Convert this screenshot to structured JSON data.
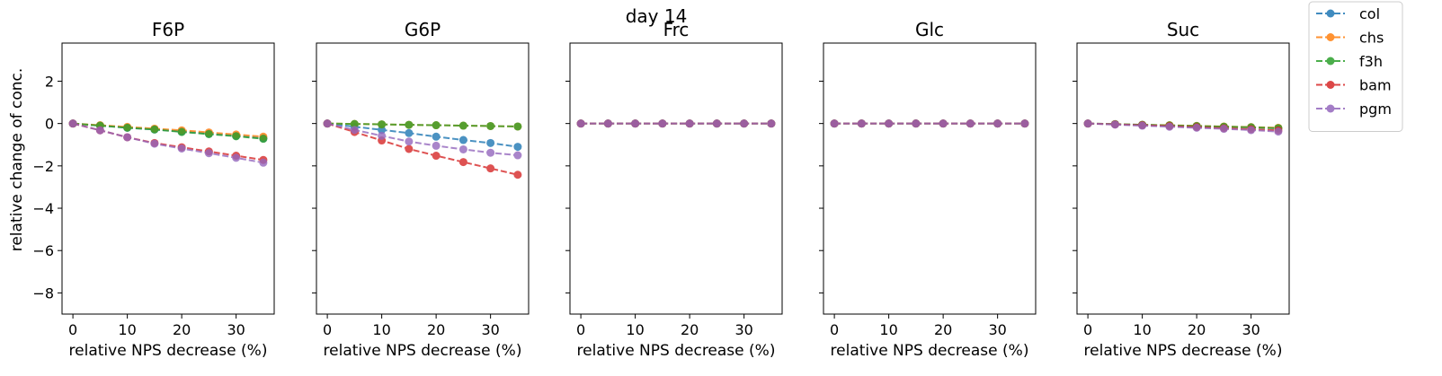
{
  "figure": {
    "suptitle": "day 14",
    "ylabel": "relative change of conc.",
    "xlabel": "relative NPS decrease (%)"
  },
  "legend": {
    "placement": "outside-top-right",
    "entries": [
      "col",
      "chs",
      "f3h",
      "bam",
      "pgm"
    ]
  },
  "colors": {
    "col": "#1f77b4",
    "chs": "#ff7f0e",
    "f3h": "#2ca02c",
    "bam": "#d62728",
    "pgm": "#9467bd"
  },
  "chart_data": [
    {
      "type": "line",
      "title": "F6P",
      "xlabel": "relative NPS decrease (%)",
      "ylabel": "relative change of conc.",
      "x": [
        0,
        5,
        10,
        15,
        20,
        25,
        30,
        35
      ],
      "xlim": [
        -2,
        37
      ],
      "ylim": [
        -9,
        3.8
      ],
      "xticks": [
        0,
        10,
        20,
        30
      ],
      "yticks": [
        2,
        0,
        -2,
        -4,
        -6,
        -8
      ],
      "series": [
        {
          "name": "col",
          "values": [
            0,
            -0.1,
            -0.2,
            -0.28,
            -0.38,
            -0.48,
            -0.58,
            -0.7
          ]
        },
        {
          "name": "chs",
          "values": [
            0,
            -0.08,
            -0.16,
            -0.24,
            -0.32,
            -0.42,
            -0.52,
            -0.62
          ]
        },
        {
          "name": "f3h",
          "values": [
            0,
            -0.1,
            -0.2,
            -0.28,
            -0.4,
            -0.5,
            -0.6,
            -0.72
          ]
        },
        {
          "name": "bam",
          "values": [
            0,
            -0.32,
            -0.65,
            -0.92,
            -1.12,
            -1.32,
            -1.52,
            -1.72
          ]
        },
        {
          "name": "pgm",
          "values": [
            0,
            -0.32,
            -0.65,
            -0.95,
            -1.18,
            -1.4,
            -1.62,
            -1.85
          ]
        }
      ]
    },
    {
      "type": "line",
      "title": "G6P",
      "xlabel": "relative NPS decrease (%)",
      "x": [
        0,
        5,
        10,
        15,
        20,
        25,
        30,
        35
      ],
      "xlim": [
        -2,
        37
      ],
      "ylim": [
        -9,
        3.8
      ],
      "xticks": [
        0,
        10,
        20,
        30
      ],
      "yticks": [
        2,
        0,
        -2,
        -4,
        -6,
        -8
      ],
      "series": [
        {
          "name": "col",
          "values": [
            0,
            -0.15,
            -0.3,
            -0.45,
            -0.62,
            -0.78,
            -0.92,
            -1.1
          ]
        },
        {
          "name": "chs",
          "values": [
            0,
            -0.02,
            -0.04,
            -0.06,
            -0.08,
            -0.1,
            -0.12,
            -0.14
          ]
        },
        {
          "name": "f3h",
          "values": [
            0,
            -0.02,
            -0.04,
            -0.06,
            -0.08,
            -0.1,
            -0.12,
            -0.14
          ]
        },
        {
          "name": "bam",
          "values": [
            0,
            -0.4,
            -0.8,
            -1.2,
            -1.52,
            -1.82,
            -2.12,
            -2.42
          ]
        },
        {
          "name": "pgm",
          "values": [
            0,
            -0.3,
            -0.58,
            -0.85,
            -1.05,
            -1.22,
            -1.38,
            -1.5
          ]
        }
      ]
    },
    {
      "type": "line",
      "title": "Frc",
      "xlabel": "relative NPS decrease (%)",
      "x": [
        0,
        5,
        10,
        15,
        20,
        25,
        30,
        35
      ],
      "xlim": [
        -2,
        37
      ],
      "ylim": [
        -9,
        3.8
      ],
      "xticks": [
        0,
        10,
        20,
        30
      ],
      "yticks": [
        2,
        0,
        -2,
        -4,
        -6,
        -8
      ],
      "series": [
        {
          "name": "col",
          "values": [
            0,
            0,
            0,
            0,
            0,
            0,
            0,
            0
          ]
        },
        {
          "name": "chs",
          "values": [
            0,
            0,
            0,
            0,
            0,
            0,
            0,
            0
          ]
        },
        {
          "name": "f3h",
          "values": [
            0,
            0,
            0,
            0,
            0,
            0,
            0,
            0
          ]
        },
        {
          "name": "bam",
          "values": [
            0,
            0,
            0,
            0,
            0,
            0,
            0,
            0
          ]
        },
        {
          "name": "pgm",
          "values": [
            0,
            0,
            0,
            0,
            0,
            0,
            0,
            0
          ]
        }
      ]
    },
    {
      "type": "line",
      "title": "Glc",
      "xlabel": "relative NPS decrease (%)",
      "x": [
        0,
        5,
        10,
        15,
        20,
        25,
        30,
        35
      ],
      "xlim": [
        -2,
        37
      ],
      "ylim": [
        -9,
        3.8
      ],
      "xticks": [
        0,
        10,
        20,
        30
      ],
      "yticks": [
        2,
        0,
        -2,
        -4,
        -6,
        -8
      ],
      "series": [
        {
          "name": "col",
          "values": [
            0,
            0,
            0,
            0,
            0,
            0,
            0,
            0
          ]
        },
        {
          "name": "chs",
          "values": [
            0,
            0,
            0,
            0,
            0,
            0,
            0,
            0
          ]
        },
        {
          "name": "f3h",
          "values": [
            0,
            0,
            0,
            0,
            0,
            0,
            0,
            0
          ]
        },
        {
          "name": "bam",
          "values": [
            0,
            0,
            0,
            0,
            0,
            0,
            0,
            0
          ]
        },
        {
          "name": "pgm",
          "values": [
            0,
            0,
            0,
            0,
            0,
            0,
            0,
            0
          ]
        }
      ]
    },
    {
      "type": "line",
      "title": "Suc",
      "xlabel": "relative NPS decrease (%)",
      "x": [
        0,
        5,
        10,
        15,
        20,
        25,
        30,
        35
      ],
      "xlim": [
        -2,
        37
      ],
      "ylim": [
        -9,
        3.8
      ],
      "xticks": [
        0,
        10,
        20,
        30
      ],
      "yticks": [
        2,
        0,
        -2,
        -4,
        -6,
        -8
      ],
      "series": [
        {
          "name": "col",
          "values": [
            0,
            -0.03,
            -0.06,
            -0.09,
            -0.12,
            -0.15,
            -0.18,
            -0.22
          ]
        },
        {
          "name": "chs",
          "values": [
            0,
            -0.03,
            -0.06,
            -0.08,
            -0.11,
            -0.14,
            -0.17,
            -0.2
          ]
        },
        {
          "name": "f3h",
          "values": [
            0,
            -0.03,
            -0.06,
            -0.09,
            -0.12,
            -0.15,
            -0.18,
            -0.22
          ]
        },
        {
          "name": "bam",
          "values": [
            0,
            -0.04,
            -0.08,
            -0.12,
            -0.17,
            -0.22,
            -0.27,
            -0.32
          ]
        },
        {
          "name": "pgm",
          "values": [
            0,
            -0.05,
            -0.1,
            -0.15,
            -0.2,
            -0.25,
            -0.31,
            -0.38
          ]
        }
      ]
    }
  ]
}
